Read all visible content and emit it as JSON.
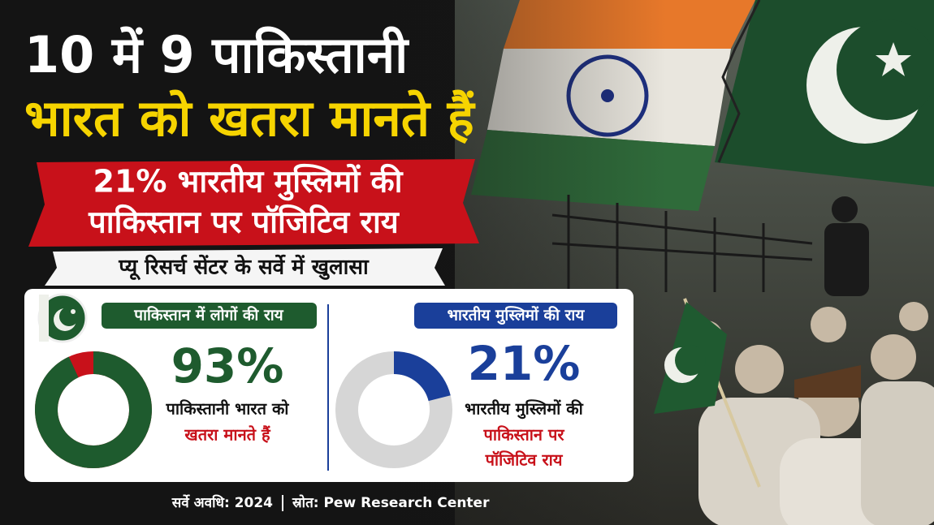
{
  "header": {
    "title_line1": "10 में 9 पाकिस्तानी",
    "title_line2": "भारत को खतरा मानते हैं",
    "banner_line1": "21% भारतीय मुस्लिमों की",
    "banner_line2": "पाकिस्तान पर पॉजिटिव राय",
    "strip": "प्यू रिसर्च सेंटर के सर्वे में खुलासा"
  },
  "panels": [
    {
      "title": "पाकिस्तान में लोगों की राय",
      "value": 93,
      "value_label": "93%",
      "caption": [
        "पाकिस्तानी भारत को",
        "खतरा मानते हैं"
      ]
    },
    {
      "title": "भारतीय मुस्लिमों की राय",
      "value": 21,
      "value_label": "21%",
      "caption": [
        "भारतीय मुस्लिमों की",
        "पाकिस्तान पर",
        "पॉजिटिव राय"
      ]
    }
  ],
  "footer": {
    "period": "सर्वे अवधि: 2024",
    "source": "स्रोत: Pew Research Center"
  }
}
